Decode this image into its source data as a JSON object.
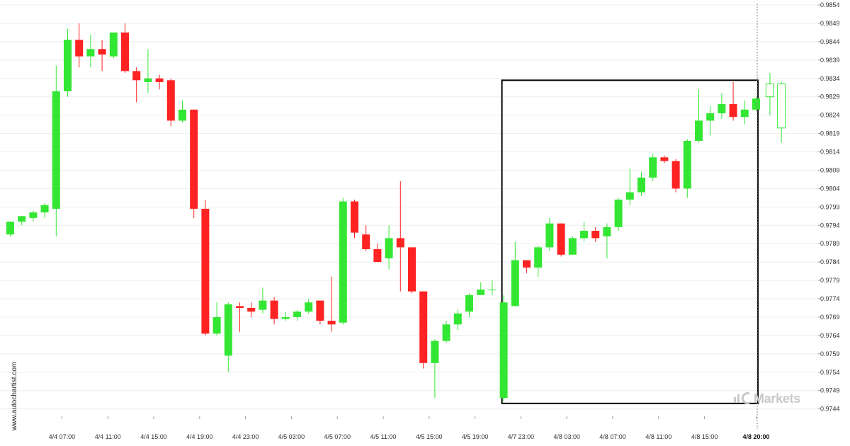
{
  "watermark": "www.autochartist.com",
  "brand": {
    "text": "Markets",
    "color": "#c8c8c8"
  },
  "colors": {
    "up": "#33e633",
    "down": "#ff2222",
    "wick": "#888888",
    "grid": "#eeeeee",
    "box": "#000000",
    "projection": "#33e633"
  },
  "chart_data": {
    "type": "candlestick",
    "title": "",
    "xlabel": "",
    "ylabel": "",
    "ylim": [
      0.9742,
      0.9854
    ],
    "y_ticks": [
      "0.9854",
      "0.9849",
      "0.9844",
      "0.9839",
      "0.9834",
      "0.9829",
      "0.9824",
      "0.9819",
      "0.9814",
      "0.9809",
      "0.9804",
      "0.9799",
      "0.9794",
      "0.9789",
      "0.9784",
      "0.9779",
      "0.9774",
      "0.9769",
      "0.9764",
      "0.9759",
      "0.9754",
      "0.9749",
      "0.9744"
    ],
    "x_ticks": [
      {
        "label": "4/4 07:00",
        "index": 4.5
      },
      {
        "label": "4/4 11:00",
        "index": 8.5
      },
      {
        "label": "4/4 15:00",
        "index": 12.5
      },
      {
        "label": "4/4 19:00",
        "index": 16.5
      },
      {
        "label": "4/4 23:00",
        "index": 20.5
      },
      {
        "label": "4/5 03:00",
        "index": 24.5
      },
      {
        "label": "4/5 07:00",
        "index": 28.5
      },
      {
        "label": "4/5 11:00",
        "index": 32.5
      },
      {
        "label": "4/5 15:00",
        "index": 36.5
      },
      {
        "label": "4/5 19:00",
        "index": 40.5
      },
      {
        "label": "4/7 23:00",
        "index": 44.5
      },
      {
        "label": "4/8 03:00",
        "index": 48.5
      },
      {
        "label": "4/8 07:00",
        "index": 52.5
      },
      {
        "label": "4/8 11:00",
        "index": 56.5
      },
      {
        "label": "4/8 15:00",
        "index": 60.5
      },
      {
        "label": "4/8 20:00",
        "index": 65.0,
        "bold": true
      }
    ],
    "candles": [
      {
        "o": 0.97915,
        "h": 0.9795,
        "l": 0.9791,
        "c": 0.9795
      },
      {
        "o": 0.9795,
        "h": 0.97965,
        "l": 0.9794,
        "c": 0.97965
      },
      {
        "o": 0.9796,
        "h": 0.9798,
        "l": 0.9795,
        "c": 0.97975
      },
      {
        "o": 0.97975,
        "h": 0.98,
        "l": 0.9796,
        "c": 0.97995
      },
      {
        "o": 0.97985,
        "h": 0.98375,
        "l": 0.9791,
        "c": 0.98305
      },
      {
        "o": 0.98305,
        "h": 0.98475,
        "l": 0.9829,
        "c": 0.98445
      },
      {
        "o": 0.98445,
        "h": 0.9849,
        "l": 0.9837,
        "c": 0.984
      },
      {
        "o": 0.984,
        "h": 0.9846,
        "l": 0.9837,
        "c": 0.9842
      },
      {
        "o": 0.9842,
        "h": 0.98445,
        "l": 0.9836,
        "c": 0.98405
      },
      {
        "o": 0.984,
        "h": 0.98465,
        "l": 0.98395,
        "c": 0.98465
      },
      {
        "o": 0.98465,
        "h": 0.9849,
        "l": 0.98355,
        "c": 0.9836
      },
      {
        "o": 0.9836,
        "h": 0.9837,
        "l": 0.98275,
        "c": 0.98335
      },
      {
        "o": 0.9833,
        "h": 0.9842,
        "l": 0.983,
        "c": 0.9834
      },
      {
        "o": 0.9834,
        "h": 0.9835,
        "l": 0.9831,
        "c": 0.9833
      },
      {
        "o": 0.98335,
        "h": 0.9834,
        "l": 0.9821,
        "c": 0.98225
      },
      {
        "o": 0.98225,
        "h": 0.9828,
        "l": 0.9822,
        "c": 0.98255
      },
      {
        "o": 0.98255,
        "h": 0.98255,
        "l": 0.9796,
        "c": 0.97985
      },
      {
        "o": 0.97985,
        "h": 0.9801,
        "l": 0.9764,
        "c": 0.97645
      },
      {
        "o": 0.97645,
        "h": 0.9773,
        "l": 0.9764,
        "c": 0.9769
      },
      {
        "o": 0.97585,
        "h": 0.9773,
        "l": 0.9754,
        "c": 0.97725
      },
      {
        "o": 0.9772,
        "h": 0.9773,
        "l": 0.9765,
        "c": 0.97715
      },
      {
        "o": 0.97715,
        "h": 0.9773,
        "l": 0.9769,
        "c": 0.97705
      },
      {
        "o": 0.9771,
        "h": 0.9777,
        "l": 0.977,
        "c": 0.97735
      },
      {
        "o": 0.97735,
        "h": 0.97745,
        "l": 0.9767,
        "c": 0.97685
      },
      {
        "o": 0.97685,
        "h": 0.97705,
        "l": 0.9768,
        "c": 0.9769
      },
      {
        "o": 0.9769,
        "h": 0.9771,
        "l": 0.9768,
        "c": 0.97705
      },
      {
        "o": 0.97705,
        "h": 0.9774,
        "l": 0.977,
        "c": 0.9773
      },
      {
        "o": 0.97735,
        "h": 0.97735,
        "l": 0.9767,
        "c": 0.9768
      },
      {
        "o": 0.9768,
        "h": 0.978,
        "l": 0.9765,
        "c": 0.9767
      },
      {
        "o": 0.97675,
        "h": 0.98015,
        "l": 0.9767,
        "c": 0.98005
      },
      {
        "o": 0.98005,
        "h": 0.9801,
        "l": 0.97905,
        "c": 0.9792
      },
      {
        "o": 0.97915,
        "h": 0.9794,
        "l": 0.9787,
        "c": 0.97875
      },
      {
        "o": 0.97875,
        "h": 0.9789,
        "l": 0.9784,
        "c": 0.9784
      },
      {
        "o": 0.9785,
        "h": 0.9794,
        "l": 0.9782,
        "c": 0.97905
      },
      {
        "o": 0.97905,
        "h": 0.9806,
        "l": 0.9776,
        "c": 0.9788
      },
      {
        "o": 0.9788,
        "h": 0.9788,
        "l": 0.97755,
        "c": 0.9776
      },
      {
        "o": 0.9776,
        "h": 0.9776,
        "l": 0.9755,
        "c": 0.97565
      },
      {
        "o": 0.97565,
        "h": 0.9763,
        "l": 0.9747,
        "c": 0.97625
      },
      {
        "o": 0.97625,
        "h": 0.9768,
        "l": 0.9762,
        "c": 0.9767
      },
      {
        "o": 0.9767,
        "h": 0.9771,
        "l": 0.97655,
        "c": 0.977
      },
      {
        "o": 0.97705,
        "h": 0.97755,
        "l": 0.9769,
        "c": 0.9775
      },
      {
        "o": 0.9775,
        "h": 0.97785,
        "l": 0.9775,
        "c": 0.97765
      },
      {
        "o": 0.97765,
        "h": 0.9779,
        "l": 0.9775,
        "c": 0.97765
      },
      {
        "o": 0.9747,
        "h": 0.9775,
        "l": 0.9746,
        "c": 0.9773
      },
      {
        "o": 0.9772,
        "h": 0.97895,
        "l": 0.9772,
        "c": 0.97845
      },
      {
        "o": 0.97845,
        "h": 0.97845,
        "l": 0.9781,
        "c": 0.97825
      },
      {
        "o": 0.97825,
        "h": 0.97885,
        "l": 0.978,
        "c": 0.9788
      },
      {
        "o": 0.9788,
        "h": 0.9796,
        "l": 0.9787,
        "c": 0.97945
      },
      {
        "o": 0.97945,
        "h": 0.97945,
        "l": 0.97855,
        "c": 0.9786
      },
      {
        "o": 0.9786,
        "h": 0.9791,
        "l": 0.9786,
        "c": 0.97905
      },
      {
        "o": 0.97905,
        "h": 0.9795,
        "l": 0.97895,
        "c": 0.97925
      },
      {
        "o": 0.97925,
        "h": 0.97935,
        "l": 0.97895,
        "c": 0.97905
      },
      {
        "o": 0.9791,
        "h": 0.97945,
        "l": 0.9785,
        "c": 0.97935
      },
      {
        "o": 0.97935,
        "h": 0.98015,
        "l": 0.97925,
        "c": 0.9801
      },
      {
        "o": 0.9801,
        "h": 0.98095,
        "l": 0.97995,
        "c": 0.9803
      },
      {
        "o": 0.9803,
        "h": 0.98085,
        "l": 0.9802,
        "c": 0.9807
      },
      {
        "o": 0.9807,
        "h": 0.98135,
        "l": 0.9806,
        "c": 0.98125
      },
      {
        "o": 0.98125,
        "h": 0.9813,
        "l": 0.9811,
        "c": 0.98115
      },
      {
        "o": 0.98115,
        "h": 0.9812,
        "l": 0.9803,
        "c": 0.9804
      },
      {
        "o": 0.9804,
        "h": 0.98175,
        "l": 0.98015,
        "c": 0.9817
      },
      {
        "o": 0.9817,
        "h": 0.9831,
        "l": 0.98165,
        "c": 0.98225
      },
      {
        "o": 0.98225,
        "h": 0.98265,
        "l": 0.98185,
        "c": 0.98245
      },
      {
        "o": 0.98245,
        "h": 0.983,
        "l": 0.9823,
        "c": 0.9827
      },
      {
        "o": 0.9827,
        "h": 0.9833,
        "l": 0.98225,
        "c": 0.98235
      },
      {
        "o": 0.98235,
        "h": 0.9828,
        "l": 0.98215,
        "c": 0.98255
      },
      {
        "o": 0.98255,
        "h": 0.9829,
        "l": 0.9825,
        "c": 0.98285
      }
    ],
    "projection": [
      {
        "o": 0.9829,
        "h": 0.98355,
        "l": 0.9824,
        "c": 0.98325
      },
      {
        "o": 0.98205,
        "h": 0.9833,
        "l": 0.98165,
        "c": 0.98325
      }
    ],
    "pattern_box": {
      "start_index": 43,
      "end_index": 65,
      "y_high": 0.98335,
      "y_low": 0.97455
    },
    "grid": true
  }
}
